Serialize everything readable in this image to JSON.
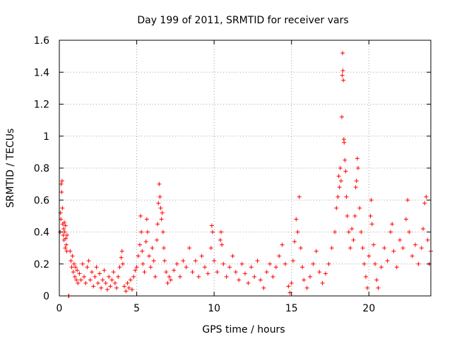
{
  "chart_data": {
    "type": "scatter",
    "title": "Day 199 of 2011, SRMTID for receiver vars",
    "xlabel": "GPS time / hours",
    "ylabel": "SRMTID / TECUs",
    "xlim": [
      0,
      24
    ],
    "ylim": [
      0,
      1.6
    ],
    "xticks": [
      0,
      5,
      10,
      15,
      20
    ],
    "xtick_labels": [
      "0",
      "5",
      "10",
      "15",
      "20"
    ],
    "yticks": [
      0,
      0.2,
      0.4,
      0.6,
      0.8,
      1,
      1.2,
      1.4,
      1.6
    ],
    "ytick_labels": [
      "0",
      "0.2",
      "0.4",
      "0.6",
      "0.8",
      "1",
      "1.2",
      "1.4",
      "1.6"
    ],
    "grid": true,
    "marker": "plus",
    "series": [
      {
        "name": "SRMTID",
        "color": "#ff0000",
        "points": [
          [
            0.05,
            0.4
          ],
          [
            0.08,
            0.52
          ],
          [
            0.1,
            0.48
          ],
          [
            0.12,
            0.7
          ],
          [
            0.15,
            0.65
          ],
          [
            0.18,
            0.72
          ],
          [
            0.2,
            0.55
          ],
          [
            0.22,
            0.45
          ],
          [
            0.25,
            0.38
          ],
          [
            0.28,
            0.42
          ],
          [
            0.3,
            0.35
          ],
          [
            0.32,
            0.46
          ],
          [
            0.35,
            0.4
          ],
          [
            0.38,
            0.3
          ],
          [
            0.4,
            0.44
          ],
          [
            0.42,
            0.36
          ],
          [
            0.45,
            0.32
          ],
          [
            0.48,
            0.28
          ],
          [
            0.5,
            0.38
          ],
          [
            0.6,
            0.0
          ],
          [
            0.62,
            0.0
          ],
          [
            0.7,
            0.28
          ],
          [
            0.75,
            0.22
          ],
          [
            0.8,
            0.18
          ],
          [
            0.85,
            0.25
          ],
          [
            0.9,
            0.15
          ],
          [
            0.95,
            0.2
          ],
          [
            1.0,
            0.12
          ],
          [
            1.05,
            0.18
          ],
          [
            1.1,
            0.1
          ],
          [
            1.15,
            0.16
          ],
          [
            1.2,
            0.08
          ],
          [
            1.3,
            0.14
          ],
          [
            1.4,
            0.1
          ],
          [
            1.5,
            0.2
          ],
          [
            1.6,
            0.12
          ],
          [
            1.7,
            0.08
          ],
          [
            1.8,
            0.18
          ],
          [
            1.9,
            0.22
          ],
          [
            2.0,
            0.1
          ],
          [
            2.1,
            0.15
          ],
          [
            2.2,
            0.06
          ],
          [
            2.3,
            0.12
          ],
          [
            2.4,
            0.18
          ],
          [
            2.5,
            0.08
          ],
          [
            2.6,
            0.14
          ],
          [
            2.7,
            0.05
          ],
          [
            2.8,
            0.1
          ],
          [
            2.9,
            0.16
          ],
          [
            3.0,
            0.08
          ],
          [
            3.1,
            0.04
          ],
          [
            3.2,
            0.12
          ],
          [
            3.3,
            0.06
          ],
          [
            3.4,
            0.1
          ],
          [
            3.5,
            0.15
          ],
          [
            3.6,
            0.08
          ],
          [
            3.7,
            0.05
          ],
          [
            3.8,
            0.12
          ],
          [
            3.9,
            0.18
          ],
          [
            4.0,
            0.24
          ],
          [
            4.05,
            0.28
          ],
          [
            4.1,
            0.2
          ],
          [
            4.2,
            0.06
          ],
          [
            4.3,
            0.03
          ],
          [
            4.4,
            0.08
          ],
          [
            4.5,
            0.05
          ],
          [
            4.6,
            0.1
          ],
          [
            4.7,
            0.04
          ],
          [
            4.8,
            0.12
          ],
          [
            4.9,
            0.16
          ],
          [
            5.0,
            0.18
          ],
          [
            5.1,
            0.25
          ],
          [
            5.2,
            0.32
          ],
          [
            5.25,
            0.5
          ],
          [
            5.3,
            0.4
          ],
          [
            5.35,
            0.28
          ],
          [
            5.4,
            0.2
          ],
          [
            5.5,
            0.15
          ],
          [
            5.6,
            0.34
          ],
          [
            5.65,
            0.48
          ],
          [
            5.7,
            0.4
          ],
          [
            5.8,
            0.25
          ],
          [
            5.9,
            0.18
          ],
          [
            6.0,
            0.3
          ],
          [
            6.1,
            0.22
          ],
          [
            6.2,
            0.12
          ],
          [
            6.3,
            0.35
          ],
          [
            6.35,
            0.45
          ],
          [
            6.4,
            0.58
          ],
          [
            6.45,
            0.7
          ],
          [
            6.5,
            0.62
          ],
          [
            6.55,
            0.55
          ],
          [
            6.6,
            0.48
          ],
          [
            6.65,
            0.52
          ],
          [
            6.7,
            0.4
          ],
          [
            6.75,
            0.3
          ],
          [
            6.8,
            0.22
          ],
          [
            6.9,
            0.15
          ],
          [
            7.0,
            0.08
          ],
          [
            7.1,
            0.12
          ],
          [
            7.2,
            0.1
          ],
          [
            7.4,
            0.16
          ],
          [
            7.6,
            0.2
          ],
          [
            7.8,
            0.12
          ],
          [
            8.0,
            0.22
          ],
          [
            8.2,
            0.18
          ],
          [
            8.4,
            0.3
          ],
          [
            8.6,
            0.15
          ],
          [
            8.8,
            0.22
          ],
          [
            9.0,
            0.12
          ],
          [
            9.2,
            0.25
          ],
          [
            9.4,
            0.18
          ],
          [
            9.6,
            0.14
          ],
          [
            9.8,
            0.3
          ],
          [
            9.85,
            0.44
          ],
          [
            9.9,
            0.4
          ],
          [
            10.0,
            0.22
          ],
          [
            10.2,
            0.15
          ],
          [
            10.4,
            0.35
          ],
          [
            10.45,
            0.4
          ],
          [
            10.5,
            0.32
          ],
          [
            10.6,
            0.2
          ],
          [
            10.8,
            0.12
          ],
          [
            11.0,
            0.18
          ],
          [
            11.2,
            0.25
          ],
          [
            11.4,
            0.15
          ],
          [
            11.6,
            0.1
          ],
          [
            11.8,
            0.2
          ],
          [
            12.0,
            0.14
          ],
          [
            12.2,
            0.08
          ],
          [
            12.4,
            0.18
          ],
          [
            12.6,
            0.12
          ],
          [
            12.8,
            0.22
          ],
          [
            13.0,
            0.1
          ],
          [
            13.2,
            0.05
          ],
          [
            13.4,
            0.15
          ],
          [
            13.6,
            0.2
          ],
          [
            13.8,
            0.12
          ],
          [
            14.0,
            0.18
          ],
          [
            14.2,
            0.25
          ],
          [
            14.4,
            0.32
          ],
          [
            14.6,
            0.2
          ],
          [
            14.8,
            0.06
          ],
          [
            14.9,
            0.02
          ],
          [
            15.0,
            0.08
          ],
          [
            15.1,
            0.22
          ],
          [
            15.2,
            0.34
          ],
          [
            15.3,
            0.48
          ],
          [
            15.4,
            0.4
          ],
          [
            15.5,
            0.62
          ],
          [
            15.6,
            0.3
          ],
          [
            15.7,
            0.18
          ],
          [
            15.8,
            0.1
          ],
          [
            16.0,
            0.05
          ],
          [
            16.2,
            0.12
          ],
          [
            16.4,
            0.2
          ],
          [
            16.6,
            0.28
          ],
          [
            16.8,
            0.15
          ],
          [
            17.0,
            0.08
          ],
          [
            17.2,
            0.14
          ],
          [
            17.4,
            0.2
          ],
          [
            17.6,
            0.3
          ],
          [
            17.8,
            0.4
          ],
          [
            17.9,
            0.55
          ],
          [
            18.0,
            0.62
          ],
          [
            18.05,
            0.75
          ],
          [
            18.1,
            0.68
          ],
          [
            18.15,
            0.8
          ],
          [
            18.2,
            0.72
          ],
          [
            18.25,
            1.12
          ],
          [
            18.28,
            1.38
          ],
          [
            18.3,
            1.52
          ],
          [
            18.32,
            1.41
          ],
          [
            18.35,
            1.35
          ],
          [
            18.38,
            0.98
          ],
          [
            18.4,
            0.96
          ],
          [
            18.45,
            0.85
          ],
          [
            18.5,
            0.78
          ],
          [
            18.55,
            0.62
          ],
          [
            18.6,
            0.5
          ],
          [
            18.7,
            0.4
          ],
          [
            18.8,
            0.3
          ],
          [
            18.9,
            0.42
          ],
          [
            19.0,
            0.35
          ],
          [
            19.1,
            0.5
          ],
          [
            19.15,
            0.68
          ],
          [
            19.2,
            0.72
          ],
          [
            19.25,
            0.86
          ],
          [
            19.3,
            0.8
          ],
          [
            19.4,
            0.55
          ],
          [
            19.5,
            0.4
          ],
          [
            19.6,
            0.3
          ],
          [
            19.7,
            0.2
          ],
          [
            19.8,
            0.12
          ],
          [
            19.9,
            0.05
          ],
          [
            20.0,
            0.25
          ],
          [
            20.1,
            0.5
          ],
          [
            20.15,
            0.6
          ],
          [
            20.2,
            0.45
          ],
          [
            20.3,
            0.32
          ],
          [
            20.4,
            0.2
          ],
          [
            20.5,
            0.1
          ],
          [
            20.6,
            0.05
          ],
          [
            20.8,
            0.18
          ],
          [
            21.0,
            0.3
          ],
          [
            21.2,
            0.22
          ],
          [
            21.4,
            0.4
          ],
          [
            21.5,
            0.45
          ],
          [
            21.6,
            0.28
          ],
          [
            21.8,
            0.18
          ],
          [
            22.0,
            0.35
          ],
          [
            22.2,
            0.3
          ],
          [
            22.4,
            0.48
          ],
          [
            22.5,
            0.6
          ],
          [
            22.6,
            0.4
          ],
          [
            22.8,
            0.25
          ],
          [
            23.0,
            0.32
          ],
          [
            23.2,
            0.2
          ],
          [
            23.4,
            0.3
          ],
          [
            23.5,
            0.42
          ],
          [
            23.6,
            0.58
          ],
          [
            23.7,
            0.62
          ],
          [
            23.8,
            0.35
          ],
          [
            23.9,
            0.2
          ],
          [
            24.0,
            0.28
          ]
        ]
      }
    ]
  }
}
